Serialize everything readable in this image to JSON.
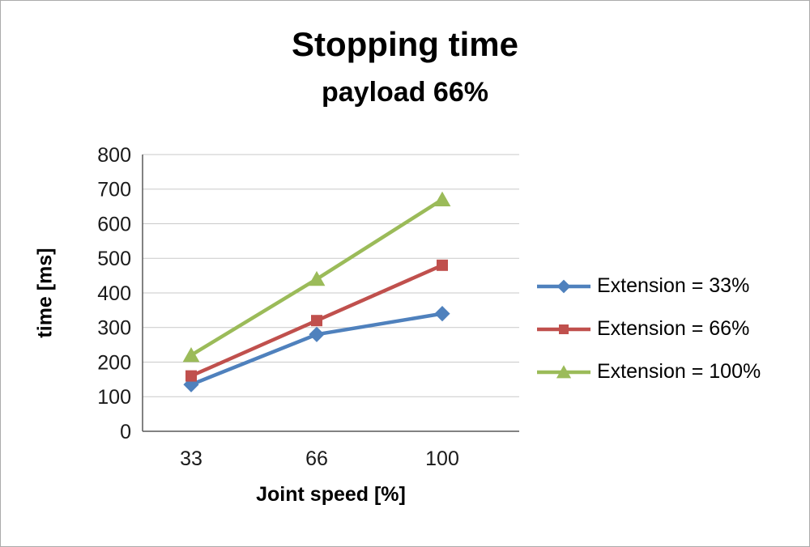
{
  "title": "Stopping time",
  "subtitle": "payload 66%",
  "chart_data": {
    "type": "line",
    "title": "Stopping time",
    "subtitle": "payload 66%",
    "xlabel": "Joint speed [%]",
    "ylabel": "time [ms]",
    "categories": [
      33,
      66,
      100
    ],
    "series": [
      {
        "name": "Extension = 33%",
        "color": "#4F81BD",
        "marker": "diamond",
        "values": [
          135,
          280,
          340
        ]
      },
      {
        "name": "Extension = 66%",
        "color": "#C0504D",
        "marker": "square",
        "values": [
          160,
          320,
          480
        ]
      },
      {
        "name": "Extension = 100%",
        "color": "#9BBB59",
        "marker": "triangle",
        "values": [
          220,
          440,
          670
        ]
      }
    ],
    "ylim": [
      0,
      800
    ],
    "ytick_step": 100,
    "grid": true,
    "legend_position": "right"
  }
}
